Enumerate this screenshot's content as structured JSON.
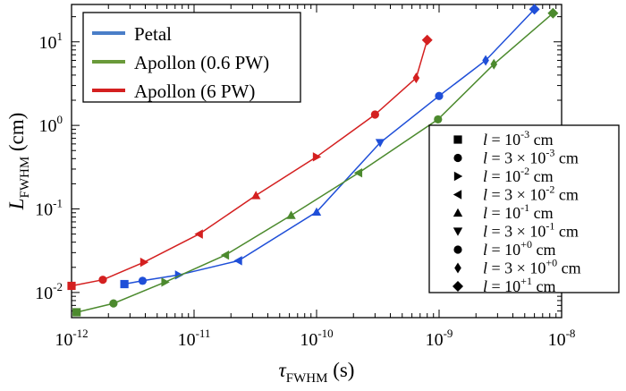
{
  "chart_data": {
    "type": "line",
    "xscale": "log",
    "yscale": "log",
    "xlim": [
      1e-12,
      1e-08
    ],
    "ylim": [
      0.005,
      28
    ],
    "xlabel": {
      "main": "τ",
      "sub": "FWHM",
      "unit": " (s)"
    },
    "ylabel": {
      "main": "L",
      "sub": "FWHM",
      "unit": " (cm)"
    },
    "x_ticks": [
      {
        "value": 1e-12,
        "base": "10",
        "exp": "-12"
      },
      {
        "value": 1e-11,
        "base": "10",
        "exp": "-11"
      },
      {
        "value": 1e-10,
        "base": "10",
        "exp": "-10"
      },
      {
        "value": 1e-09,
        "base": "10",
        "exp": "-9"
      },
      {
        "value": 1e-08,
        "base": "10",
        "exp": "-8"
      }
    ],
    "y_ticks": [
      {
        "value": 0.01,
        "base": "10",
        "exp": "-2"
      },
      {
        "value": 0.1,
        "base": "10",
        "exp": "-1"
      },
      {
        "value": 1,
        "base": "10",
        "exp": "0"
      },
      {
        "value": 10,
        "base": "10",
        "exp": "1"
      }
    ],
    "series": [
      {
        "name": "Petal",
        "color": "#1f4fd8",
        "legend_color": "#4a7ec8",
        "points": [
          {
            "x": 2.7e-12,
            "y": 0.0126,
            "marker": "square"
          },
          {
            "x": 3.8e-12,
            "y": 0.0138,
            "marker": "circle"
          },
          {
            "x": 7.5e-12,
            "y": 0.0162,
            "marker": "tri-right"
          },
          {
            "x": 2.3e-11,
            "y": 0.024,
            "marker": "tri-left"
          },
          {
            "x": 1e-10,
            "y": 0.092,
            "marker": "tri-up"
          },
          {
            "x": 3.3e-10,
            "y": 0.62,
            "marker": "tri-down"
          },
          {
            "x": 1e-09,
            "y": 2.25,
            "marker": "circle"
          },
          {
            "x": 2.4e-09,
            "y": 6.0,
            "marker": "diamond"
          },
          {
            "x": 6e-09,
            "y": 24.5,
            "marker": "diamond-big"
          }
        ]
      },
      {
        "name": "Apollon (0.6 PW)",
        "color": "#4c8a2e",
        "legend_color": "#6a9a3a",
        "points": [
          {
            "x": 1.1e-12,
            "y": 0.0058,
            "marker": "square"
          },
          {
            "x": 2.2e-12,
            "y": 0.0074,
            "marker": "circle"
          },
          {
            "x": 5.8e-12,
            "y": 0.0133,
            "marker": "tri-right"
          },
          {
            "x": 1.8e-11,
            "y": 0.028,
            "marker": "tri-left"
          },
          {
            "x": 6.2e-11,
            "y": 0.084,
            "marker": "tri-up"
          },
          {
            "x": 2.2e-10,
            "y": 0.27,
            "marker": "tri-left"
          },
          {
            "x": 9.8e-10,
            "y": 1.18,
            "marker": "circle"
          },
          {
            "x": 2.8e-09,
            "y": 5.4,
            "marker": "diamond"
          },
          {
            "x": 8.5e-09,
            "y": 22.0,
            "marker": "diamond-big"
          }
        ]
      },
      {
        "name": "Apollon (6 PW)",
        "color": "#d42020",
        "legend_color": "#d42020",
        "points": [
          {
            "x": 1e-12,
            "y": 0.012,
            "marker": "square"
          },
          {
            "x": 1.8e-12,
            "y": 0.0142,
            "marker": "circle"
          },
          {
            "x": 3.9e-12,
            "y": 0.023,
            "marker": "tri-right"
          },
          {
            "x": 1.1e-11,
            "y": 0.05,
            "marker": "tri-left"
          },
          {
            "x": 3.2e-11,
            "y": 0.145,
            "marker": "tri-up"
          },
          {
            "x": 1e-10,
            "y": 0.42,
            "marker": "tri-right"
          },
          {
            "x": 3e-10,
            "y": 1.35,
            "marker": "circle"
          },
          {
            "x": 6.5e-10,
            "y": 3.7,
            "marker": "diamond"
          },
          {
            "x": 8e-10,
            "y": 10.5,
            "marker": "diamond-big"
          }
        ]
      }
    ],
    "legend": {
      "placement": "top-left"
    },
    "marker_legend": {
      "placement": "lower-right",
      "items": [
        {
          "marker": "square",
          "base": "10",
          "exp": "-3",
          "coef": "",
          "unit": "cm"
        },
        {
          "marker": "circle",
          "base": "10",
          "exp": "-3",
          "coef": "3 × ",
          "unit": "cm"
        },
        {
          "marker": "tri-right",
          "base": "10",
          "exp": "-2",
          "coef": "",
          "unit": "cm"
        },
        {
          "marker": "tri-left",
          "base": "10",
          "exp": "-2",
          "coef": "3 × ",
          "unit": "cm"
        },
        {
          "marker": "tri-up",
          "base": "10",
          "exp": "-1",
          "coef": "",
          "unit": "cm"
        },
        {
          "marker": "tri-down",
          "base": "10",
          "exp": "-1",
          "coef": "3 × ",
          "unit": "cm"
        },
        {
          "marker": "circle",
          "base": "10",
          "exp": "+0",
          "coef": "",
          "unit": "cm"
        },
        {
          "marker": "diamond",
          "base": "10",
          "exp": "+0",
          "coef": "3 × ",
          "unit": "cm"
        },
        {
          "marker": "diamond-big",
          "base": "10",
          "exp": "+1",
          "coef": "",
          "unit": "cm"
        }
      ],
      "var": "l"
    }
  }
}
